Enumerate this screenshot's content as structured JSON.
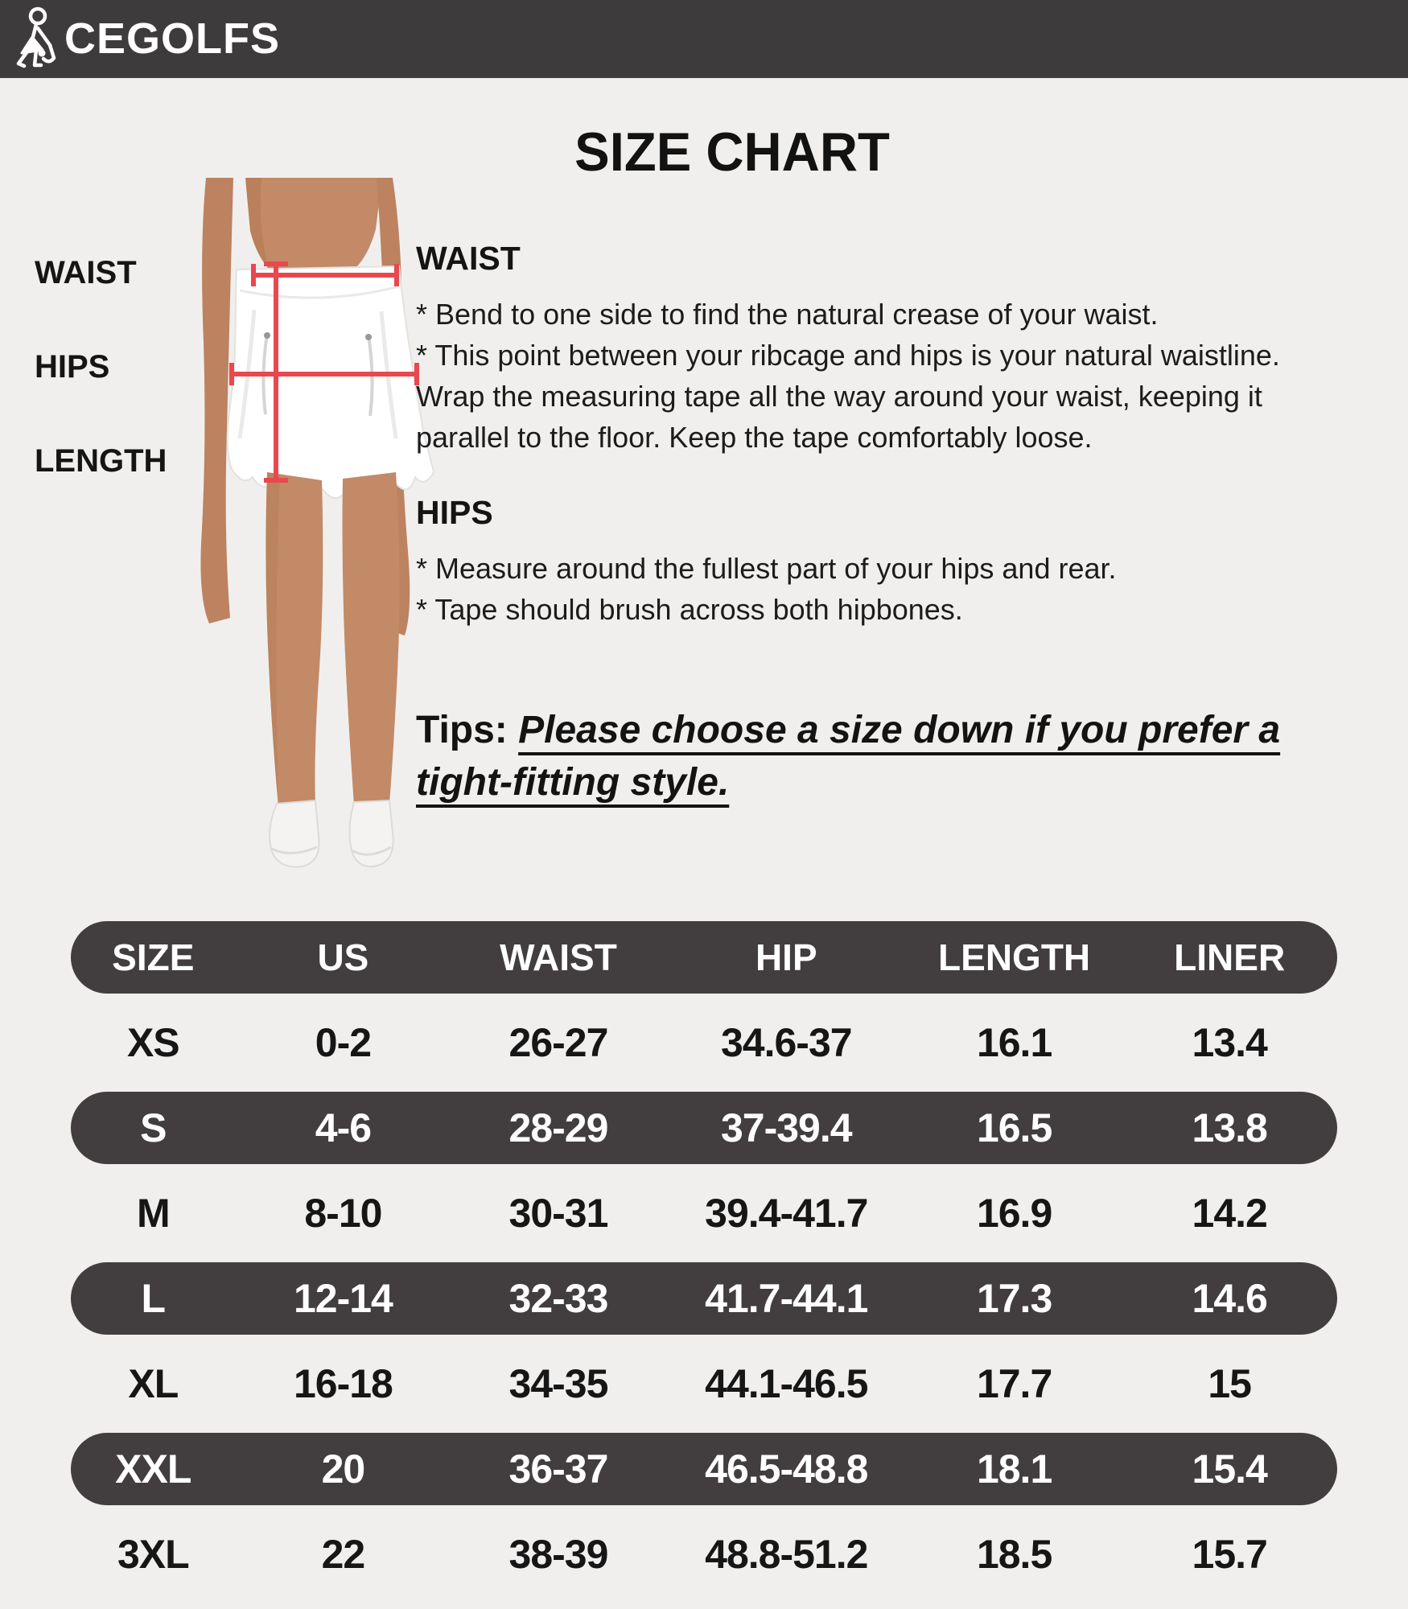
{
  "colors": {
    "bar_dark": "#3e3b3c",
    "pill_dark": "#423e3f",
    "background": "#f0efee",
    "accent_red": "#e8484e",
    "skin": "#c28a66",
    "text": "#151515"
  },
  "header": {
    "brand_text": "CEGOLFS",
    "brand_icon": "golfer-icon"
  },
  "title": "SIZE CHART",
  "diagram": {
    "labels": [
      "WAIST",
      "HIPS",
      "LENGTH"
    ]
  },
  "instructions": {
    "waist": {
      "heading": "WAIST",
      "bullets": "* Bend to one side to find the natural crease of your waist.\n* This point between your ribcage and hips is your natural waistline.\nWrap the measuring tape all the way around your waist, keeping it\nparallel to the floor. Keep the tape comfortably loose."
    },
    "hips": {
      "heading": "HIPS",
      "bullets": "* Measure around the fullest part of your hips and rear.\n* Tape should brush across both hipbones."
    },
    "tips": {
      "prefix": "Tips: ",
      "text": "Please choose a size down if you prefer a\ntight-fitting style."
    }
  },
  "table": {
    "headers": [
      "SIZE",
      "US",
      "WAIST",
      "HIP",
      "LENGTH",
      "LINER"
    ],
    "rows": [
      [
        "XS",
        "0-2",
        "26-27",
        "34.6-37",
        "16.1",
        "13.4"
      ],
      [
        "S",
        "4-6",
        "28-29",
        "37-39.4",
        "16.5",
        "13.8"
      ],
      [
        "M",
        "8-10",
        "30-31",
        "39.4-41.7",
        "16.9",
        "14.2"
      ],
      [
        "L",
        "12-14",
        "32-33",
        "41.7-44.1",
        "17.3",
        "14.6"
      ],
      [
        "XL",
        "16-18",
        "34-35",
        "44.1-46.5",
        "17.7",
        "15"
      ],
      [
        "XXL",
        "20",
        "36-37",
        "46.5-48.8",
        "18.1",
        "15.4"
      ],
      [
        "3XL",
        "22",
        "38-39",
        "48.8-51.2",
        "18.5",
        "15.7"
      ]
    ],
    "dark_row_indexes": [
      1,
      3,
      5
    ]
  }
}
